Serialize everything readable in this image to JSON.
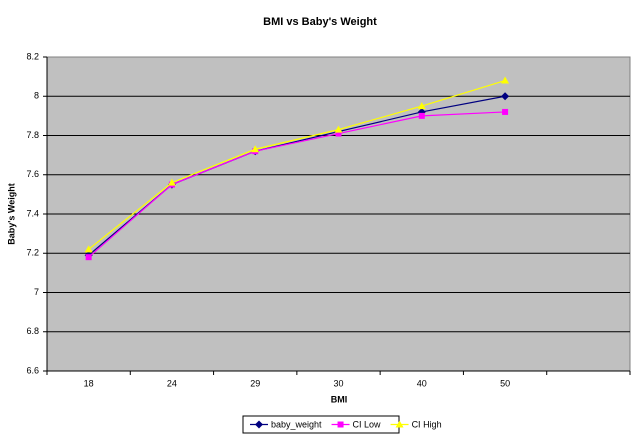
{
  "chart_data": {
    "type": "line",
    "title": "BMI vs Baby's Weight",
    "x_label": "BMI",
    "y_label": "Baby's Weight",
    "categories": [
      "18",
      "24",
      "29",
      "30",
      "40",
      "50",
      null
    ],
    "series": [
      {
        "name": "baby_weight",
        "color": "#000080",
        "marker": "diamond",
        "values": [
          7.19,
          7.55,
          7.72,
          7.82,
          7.92,
          8.0,
          null
        ]
      },
      {
        "name": "CI Low",
        "color": "#ff00ff",
        "marker": "square",
        "values": [
          7.18,
          7.55,
          7.72,
          7.81,
          7.9,
          7.92,
          null
        ]
      },
      {
        "name": "CI High",
        "color": "#ffff00",
        "marker": "triangle",
        "values": [
          7.22,
          7.56,
          7.73,
          7.83,
          7.95,
          8.08,
          null
        ]
      }
    ],
    "ylim": [
      6.6,
      8.2
    ],
    "yticks": [
      6.6,
      6.8,
      7,
      7.2,
      7.4,
      7.6,
      7.8,
      8,
      8.2
    ],
    "grid": true,
    "legend": "bottom"
  }
}
